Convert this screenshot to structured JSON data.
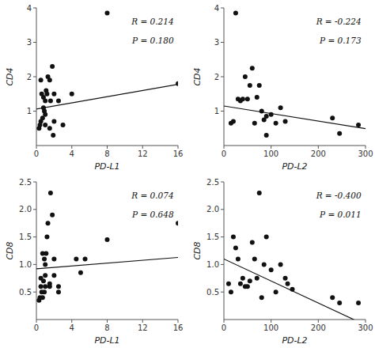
{
  "chart_data": [
    {
      "type": "scatter",
      "x_label": "PD-L1",
      "y_label": "CD4",
      "annotations": [
        "R = 0.214",
        "P = 0.180"
      ],
      "xlim": [
        0,
        16
      ],
      "ylim": [
        0,
        4
      ],
      "xticks": [
        0,
        4,
        8,
        12,
        16
      ],
      "yticks": [
        1,
        2,
        3,
        4
      ],
      "series": [
        {
          "type": "scatter",
          "color": "#111111",
          "x": [
            0.3,
            0.4,
            0.5,
            0.5,
            0.6,
            0.7,
            0.8,
            0.8,
            0.9,
            1.0,
            1.0,
            1.0,
            1.1,
            1.2,
            1.3,
            1.5,
            1.5,
            1.6,
            1.8,
            1.9,
            2.0,
            2.0,
            2.5,
            3.0,
            4.0,
            8.0,
            16.0
          ],
          "values": [
            0.5,
            0.6,
            1.9,
            0.7,
            1.5,
            0.8,
            1.1,
            1.4,
            1.0,
            1.3,
            0.9,
            0.6,
            1.6,
            1.5,
            2.0,
            0.5,
            1.9,
            1.3,
            2.3,
            0.3,
            1.5,
            0.7,
            1.3,
            0.6,
            1.5,
            3.85,
            1.8
          ]
        },
        {
          "type": "line",
          "color": "#111111",
          "slope": 0.045,
          "intercept": 1.06
        }
      ]
    },
    {
      "type": "scatter",
      "x_label": "PD-L2",
      "y_label": "CD4",
      "annotations": [
        "R = -0.224",
        "P = 0.173"
      ],
      "xlim": [
        0,
        300
      ],
      "ylim": [
        0,
        4
      ],
      "xticks": [
        0,
        100,
        200,
        300
      ],
      "yticks": [
        1,
        2,
        3,
        4
      ],
      "series": [
        {
          "type": "scatter",
          "color": "#111111",
          "x": [
            15,
            20,
            25,
            30,
            35,
            40,
            45,
            50,
            55,
            60,
            65,
            70,
            75,
            80,
            85,
            90,
            90,
            100,
            110,
            120,
            130,
            230,
            245,
            285
          ],
          "values": [
            0.65,
            0.7,
            3.85,
            1.35,
            1.3,
            1.35,
            2.0,
            1.35,
            1.75,
            2.25,
            0.65,
            1.4,
            1.75,
            1.0,
            0.75,
            0.3,
            0.85,
            0.9,
            0.65,
            1.1,
            0.7,
            0.8,
            0.35,
            0.6
          ]
        },
        {
          "type": "line",
          "color": "#111111",
          "slope": -0.0022,
          "intercept": 1.15
        }
      ]
    },
    {
      "type": "scatter",
      "x_label": "PD-L1",
      "y_label": "CD8",
      "annotations": [
        "R = 0.074",
        "P = 0.648"
      ],
      "xlim": [
        0,
        16
      ],
      "ylim": [
        0,
        2.5
      ],
      "xticks": [
        0,
        4,
        8,
        12,
        16
      ],
      "yticks": [
        0.5,
        {
          "value": 1.0,
          "label": "1.0"
        },
        1.5,
        {
          "value": 2.0,
          "label": "2.0"
        },
        2.5
      ],
      "series": [
        {
          "type": "scatter",
          "color": "#111111",
          "x": [
            0.3,
            0.4,
            0.5,
            0.5,
            0.6,
            0.7,
            0.7,
            0.8,
            0.9,
            0.9,
            1.0,
            1.0,
            1.0,
            1.1,
            1.2,
            1.3,
            1.5,
            1.5,
            1.6,
            1.8,
            2.0,
            2.0,
            2.5,
            2.5,
            4.5,
            5.0,
            5.5,
            8.0,
            16.0
          ],
          "values": [
            0.35,
            0.4,
            0.75,
            0.6,
            0.5,
            0.4,
            1.2,
            0.7,
            0.5,
            1.1,
            1.0,
            0.8,
            0.6,
            1.2,
            1.5,
            1.75,
            0.65,
            0.6,
            2.3,
            1.9,
            0.8,
            1.1,
            0.5,
            0.6,
            1.1,
            0.85,
            1.1,
            1.45,
            1.75
          ]
        },
        {
          "type": "line",
          "color": "#111111",
          "slope": 0.013,
          "intercept": 0.92
        }
      ]
    },
    {
      "type": "scatter",
      "x_label": "PD-L2",
      "y_label": "CD8",
      "annotations": [
        "R = -0.400",
        "P = 0.011"
      ],
      "xlim": [
        0,
        300
      ],
      "ylim": [
        0,
        2.5
      ],
      "xticks": [
        0,
        100,
        200,
        300
      ],
      "yticks": [
        0.5,
        {
          "value": 1.0,
          "label": "1.0"
        },
        1.5,
        {
          "value": 2.0,
          "label": "2.0"
        },
        2.5
      ],
      "series": [
        {
          "type": "scatter",
          "color": "#111111",
          "x": [
            10,
            15,
            20,
            25,
            30,
            35,
            40,
            45,
            50,
            55,
            60,
            65,
            70,
            75,
            80,
            85,
            90,
            100,
            110,
            120,
            130,
            135,
            145,
            230,
            245,
            285
          ],
          "values": [
            0.65,
            0.5,
            1.5,
            1.3,
            1.1,
            0.65,
            0.75,
            0.6,
            0.6,
            0.7,
            1.4,
            1.1,
            0.75,
            2.3,
            0.4,
            1.0,
            1.5,
            0.9,
            0.5,
            1.0,
            0.75,
            0.65,
            0.55,
            0.4,
            0.3,
            0.3
          ]
        },
        {
          "type": "line",
          "color": "#111111",
          "slope": -0.004,
          "intercept": 1.1
        }
      ]
    }
  ]
}
